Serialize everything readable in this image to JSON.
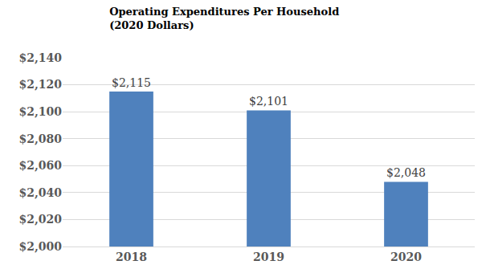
{
  "chart_data": {
    "type": "bar",
    "title": "Operating Expenditures Per Household\n(2020 Dollars)",
    "categories": [
      "2018",
      "2019",
      "2020"
    ],
    "values": [
      2115,
      2101,
      2048
    ],
    "value_labels": [
      "$2,115",
      "$2,101",
      "$2,048"
    ],
    "data_labels": true,
    "color": "#4f81bd",
    "ylim": [
      2000,
      2140
    ],
    "yticks": [
      {
        "value": 2000,
        "label": "$2,000"
      },
      {
        "value": 2020,
        "label": "$2,020"
      },
      {
        "value": 2040,
        "label": "$2,040"
      },
      {
        "value": 2060,
        "label": "$2,060"
      },
      {
        "value": 2080,
        "label": "$2,080"
      },
      {
        "value": 2100,
        "label": "$2,100"
      },
      {
        "value": 2120,
        "label": "$2,120"
      },
      {
        "value": 2140,
        "label": "$2,140"
      }
    ],
    "grid": true
  }
}
